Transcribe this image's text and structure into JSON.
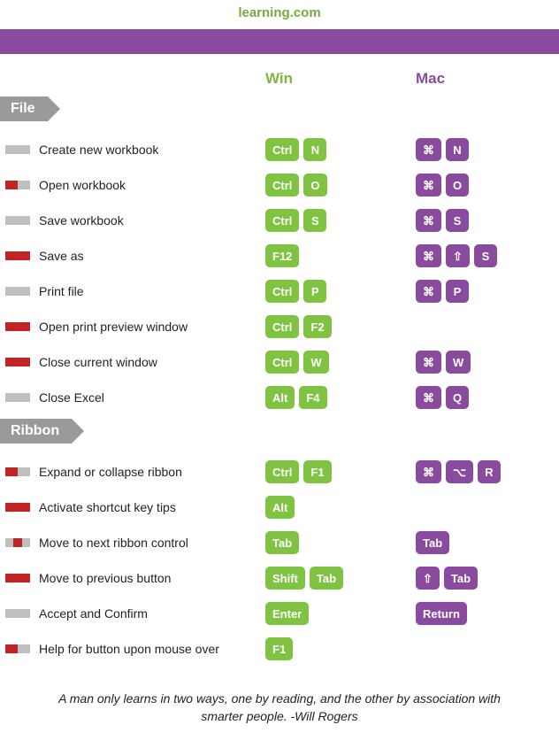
{
  "brand": {
    "text_fragment": "learning.com",
    "color": "#7aa93c"
  },
  "bar_color": "#8a4a9e",
  "headers": {
    "win": "Win",
    "mac": "Mac",
    "win_color": "#80b73f",
    "mac_color": "#8a4a9e"
  },
  "section_tag": {
    "bg": "#9a9a9a",
    "arrow": "#9a9a9a"
  },
  "key_colors": {
    "win": "#80c241",
    "mac": "#8a4a9e"
  },
  "marker_colors": {
    "gray": "#bfbfbf",
    "red": "#c02424"
  },
  "sections": [
    {
      "title": "File",
      "rows": [
        {
          "marker": [
            "gray"
          ],
          "desc": "Create new workbook",
          "win": [
            "Ctrl",
            "N"
          ],
          "mac": [
            "⌘",
            "N"
          ]
        },
        {
          "marker": [
            "red",
            "gray"
          ],
          "desc": "Open workbook",
          "win": [
            "Ctrl",
            "O"
          ],
          "mac": [
            "⌘",
            "O"
          ]
        },
        {
          "marker": [
            "gray"
          ],
          "desc": "Save workbook",
          "win": [
            "Ctrl",
            "S"
          ],
          "mac": [
            "⌘",
            "S"
          ]
        },
        {
          "marker": [
            "red"
          ],
          "desc": "Save as",
          "win": [
            "F12"
          ],
          "mac": [
            "⌘",
            "⇧",
            "S"
          ]
        },
        {
          "marker": [
            "gray"
          ],
          "desc": "Print file",
          "win": [
            "Ctrl",
            "P"
          ],
          "mac": [
            "⌘",
            "P"
          ]
        },
        {
          "marker": [
            "red"
          ],
          "desc": "Open print preview window",
          "win": [
            "Ctrl",
            "F2"
          ],
          "mac": []
        },
        {
          "marker": [
            "red"
          ],
          "desc": "Close current window",
          "win": [
            "Ctrl",
            "W"
          ],
          "mac": [
            "⌘",
            "W"
          ]
        },
        {
          "marker": [
            "gray"
          ],
          "desc": "Close Excel",
          "win": [
            "Alt",
            "F4"
          ],
          "mac": [
            "⌘",
            "Q"
          ]
        }
      ]
    },
    {
      "title": "Ribbon",
      "rows": [
        {
          "marker": [
            "red",
            "gray"
          ],
          "desc": "Expand or collapse ribbon",
          "win": [
            "Ctrl",
            "F1"
          ],
          "mac": [
            "⌘",
            "⌥",
            "R"
          ]
        },
        {
          "marker": [
            "red"
          ],
          "desc": "Activate shortcut key tips",
          "win": [
            "Alt"
          ],
          "mac": []
        },
        {
          "marker": [
            "gray",
            "red",
            "gray"
          ],
          "desc": "Move to next ribbon control",
          "win": [
            "Tab"
          ],
          "mac": [
            "Tab"
          ]
        },
        {
          "marker": [
            "red"
          ],
          "desc": "Move to previous button",
          "win": [
            "Shift",
            "Tab"
          ],
          "mac": [
            "⇧",
            "Tab"
          ]
        },
        {
          "marker": [
            "gray"
          ],
          "desc": "Accept and Confirm",
          "win": [
            "Enter"
          ],
          "mac": [
            "Return"
          ]
        },
        {
          "marker": [
            "red",
            "gray"
          ],
          "desc": "Help for button upon mouse over",
          "win": [
            "F1"
          ],
          "mac": []
        }
      ]
    }
  ],
  "quote": "A man only learns in two ways, one by reading, and the other by association with smarter people. -Will Rogers"
}
